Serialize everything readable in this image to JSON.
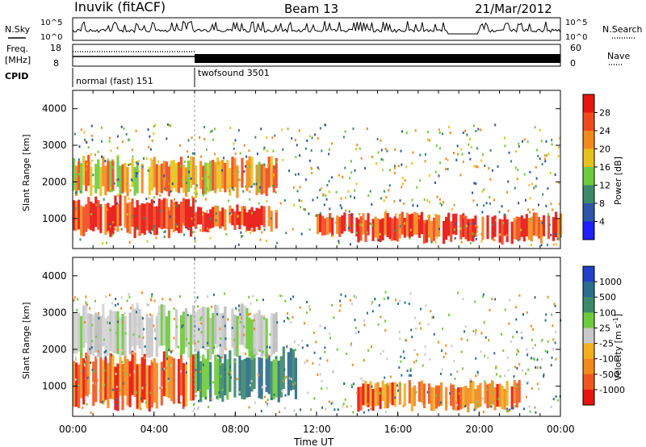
{
  "header": {
    "station": "Inuvik (fitACF)",
    "beam": "Beam 13",
    "date": "21/Mar/2012"
  },
  "top_panels": {
    "nsky_label": "N.Sky",
    "nsearch_label": "N.Search",
    "noise_ticks": [
      "10^5",
      "10^0"
    ],
    "freq_label": "Freq.",
    "freq_unit": "[MHz]",
    "freq_ticks": [
      "18",
      "8"
    ],
    "nave_label": "Nave",
    "nave_ticks": [
      "60",
      "0"
    ],
    "cpid_label": "CPID",
    "cpid_modes": [
      {
        "name": "normal (fast) 151",
        "start": 0,
        "end": 6
      },
      {
        "name": "twofsound 3501",
        "start": 6,
        "end": 24
      }
    ]
  },
  "x_axis": {
    "label": "Time UT",
    "ticks": [
      "00:00",
      "04:00",
      "08:00",
      "12:00",
      "16:00",
      "20:00",
      "00:00"
    ]
  },
  "chart_data": [
    {
      "type": "heatmap",
      "name": "power",
      "ylabel": "Slant Range [km]",
      "yticks": [
        "1000",
        "2000",
        "3000",
        "4000"
      ],
      "ylim": [
        180,
        4500
      ],
      "xlim": [
        0,
        24
      ],
      "colorbar_label": "Power [dB]",
      "colorbar_ticks": [
        "4",
        "8",
        "12",
        "16",
        "20",
        "24",
        "28"
      ],
      "colorbar_colors": [
        "#1f1fff",
        "#2e55a8",
        "#3a8a6a",
        "#6ecb3c",
        "#e6c21d",
        "#f28a1e",
        "#f2481e",
        "#e8140f"
      ],
      "dominant_bands": [
        {
          "t0": 0,
          "t1": 6,
          "r0": 600,
          "r1": 1500,
          "level": "high"
        },
        {
          "t0": 6,
          "t1": 10,
          "r0": 700,
          "r1": 1300,
          "level": "high"
        },
        {
          "t0": 12,
          "t1": 14,
          "r0": 500,
          "r1": 1100,
          "level": "high"
        },
        {
          "t0": 14,
          "t1": 24,
          "r0": 400,
          "r1": 1100,
          "level": "high"
        },
        {
          "t0": 0,
          "t1": 10,
          "r0": 1700,
          "r1": 2600,
          "level": "medium"
        }
      ]
    },
    {
      "type": "heatmap",
      "name": "velocity",
      "ylabel": "Slant Range [km]",
      "yticks": [
        "1000",
        "2000",
        "3000",
        "4000"
      ],
      "ylim": [
        180,
        4500
      ],
      "xlim": [
        0,
        24
      ],
      "colorbar_label": "Velocity [m s^-1]",
      "colorbar_ticks": [
        "1000",
        "500",
        "100",
        "25",
        "-25",
        "-100",
        "-500",
        "-1000"
      ],
      "colorbar_colors": [
        "#2340c8",
        "#2b6d8c",
        "#3c8a6a",
        "#6ecb3c",
        "#c8c8c8",
        "#f2b01e",
        "#f28a1e",
        "#f2561e",
        "#e8140f"
      ],
      "dominant_bands": [
        {
          "t0": 0,
          "t1": 6,
          "r0": 500,
          "r1": 1800,
          "level": "receding"
        },
        {
          "t0": 6,
          "t1": 11,
          "r0": 700,
          "r1": 1900,
          "level": "approaching"
        },
        {
          "t0": 0,
          "t1": 10,
          "r0": 1900,
          "r1": 3100,
          "level": "near-zero"
        },
        {
          "t0": 14,
          "t1": 22,
          "r0": 400,
          "r1": 1100,
          "level": "receding"
        }
      ]
    }
  ]
}
